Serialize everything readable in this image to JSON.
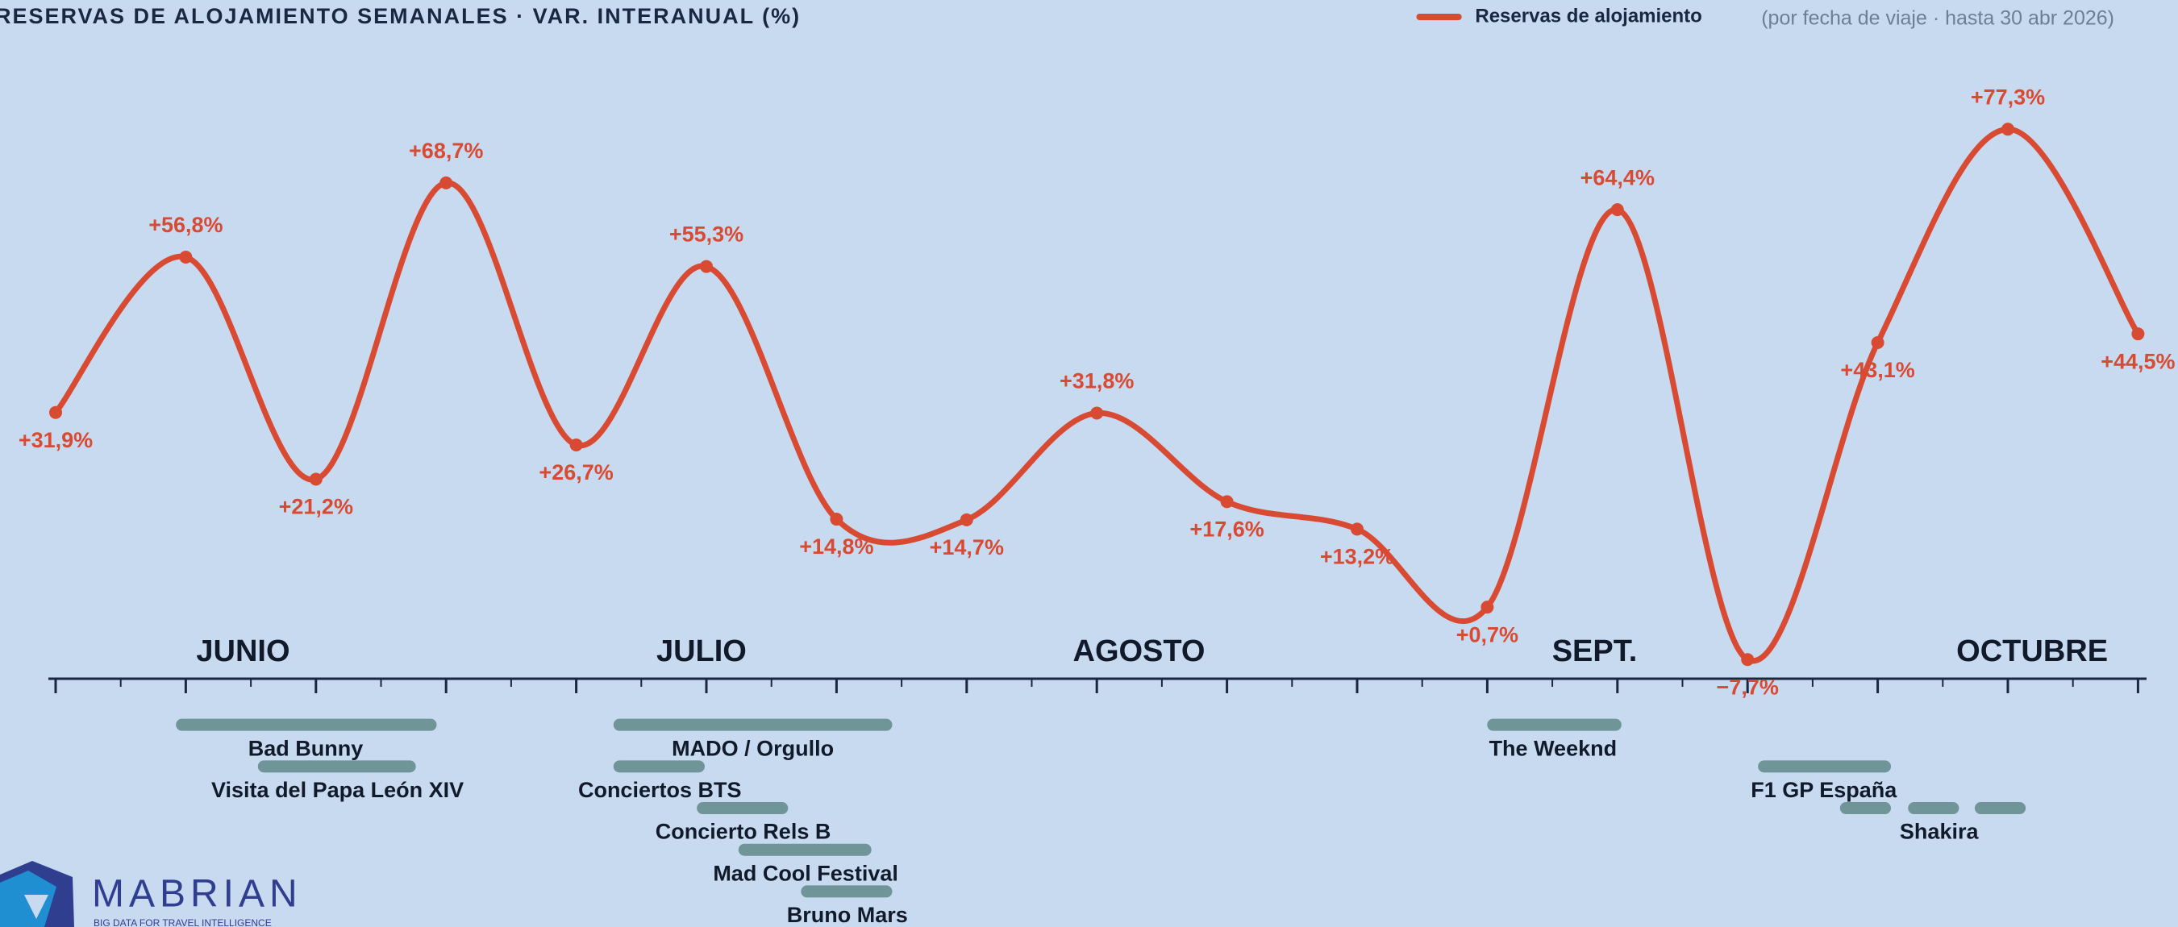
{
  "chart_data": {
    "type": "line",
    "title": "RESERVAS DE ALOJAMIENTO SEMANALES · VAR. INTERANUAL (%)",
    "subtitle": "(por fecha de viaje · hasta 30 abr 2026)",
    "categories": [
      null,
      null,
      null,
      null,
      null,
      null,
      null,
      null,
      null,
      null,
      null,
      null,
      null,
      null,
      null,
      null,
      null
    ],
    "series": [
      {
        "name": "Reservas de alojamiento",
        "color": "#d94a32",
        "values": [
          31.9,
          56.8,
          21.2,
          68.7,
          26.7,
          55.3,
          14.8,
          14.7,
          31.8,
          17.6,
          13.2,
          0.7,
          64.4,
          -7.7,
          43.1,
          77.3,
          44.5
        ],
        "value_labels": [
          "+31,9%",
          "+56,8%",
          "+21,2%",
          "+68,7%",
          "+26,7%",
          "+55,3%",
          "+14,8%",
          "+14,7%",
          "+31,8%",
          "+17,6%",
          "+13,2%",
          "+0,7%",
          "+64,4%",
          "−7,7%",
          "+43,1%",
          "+77,3%",
          "+44,5%"
        ]
      }
    ],
    "ylim": [
      -10,
      80
    ],
    "months": [
      "JUNIO",
      "JULIO",
      "AGOSTO",
      "SEPT.",
      "OCTUBRE"
    ],
    "events": [
      "Bad Bunny",
      "Visita del Papa León XIV",
      "MADO / Orgullo",
      "Conciertos BTS",
      "Concierto Rels B",
      "Mad Cool Festival",
      "Bruno Mars",
      "The Weeknd",
      "F1 GP España",
      "Shakira"
    ],
    "event_color": "#6f9599"
  },
  "logo": {
    "name": "MABRIAN",
    "tagline": "BIG DATA FOR TRAVEL INTELLIGENCE"
  }
}
